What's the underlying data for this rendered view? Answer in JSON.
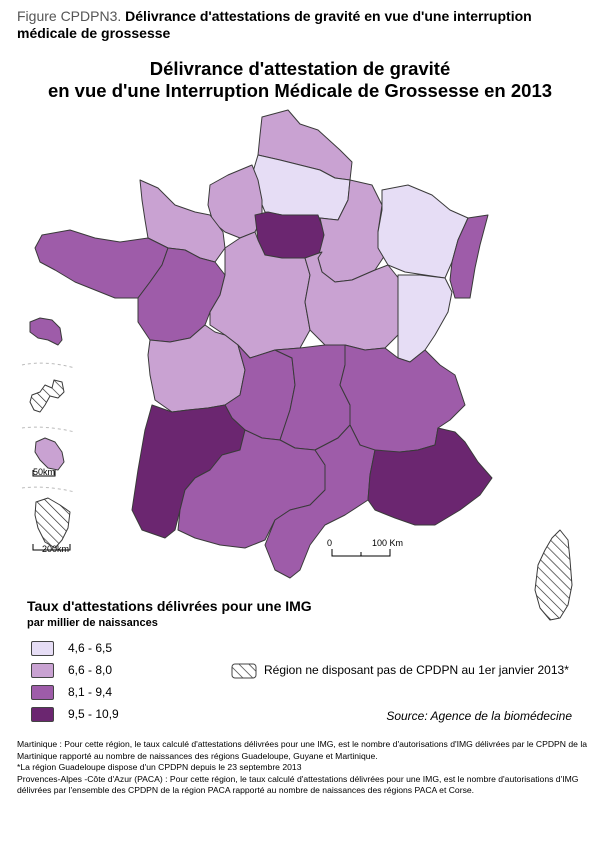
{
  "figure": {
    "number": "Figure CPDPN3.",
    "caption": " Délivrance d'attestations de gravité en vue d'une interruption médicale de grossesse"
  },
  "title": {
    "line1": "Délivrance d'attestation de gravité",
    "line2": "en vue d'une Interruption Médicale de Grossesse en 2013"
  },
  "legend": {
    "title": "Taux d'attestations délivrées pour une IMG",
    "subtitle": "par millier de naissances",
    "classes": [
      {
        "label": "4,6 - 6,5",
        "color": "#e6ddf5"
      },
      {
        "label": "6,6 - 8,0",
        "color": "#c9a2d2"
      },
      {
        "label": "8,1 - 9,4",
        "color": "#9e5ca9"
      },
      {
        "label": "9,5 - 10,9",
        "color": "#6b2670"
      }
    ],
    "nodata_label": "Région ne disposant pas de CPDPN au 1er janvier 2013*"
  },
  "scale": {
    "zero": "0",
    "main": "100 Km",
    "inset_small": "50km",
    "inset_large": "200km"
  },
  "regions": [
    {
      "name": "Nord-Pas-de-Calais",
      "class": 1
    },
    {
      "name": "Picardie",
      "class": 0
    },
    {
      "name": "Haute-Normandie",
      "class": 1
    },
    {
      "name": "Basse-Normandie",
      "class": 1
    },
    {
      "name": "Bretagne",
      "class": 2
    },
    {
      "name": "Ile-de-France",
      "class": 3
    },
    {
      "name": "Champagne-Ardenne",
      "class": 1
    },
    {
      "name": "Lorraine",
      "class": 0
    },
    {
      "name": "Alsace",
      "class": 2
    },
    {
      "name": "Pays de la Loire",
      "class": 2
    },
    {
      "name": "Centre",
      "class": 1
    },
    {
      "name": "Bourgogne",
      "class": 1
    },
    {
      "name": "Franche-Comté",
      "class": 0
    },
    {
      "name": "Poitou-Charentes",
      "class": 1
    },
    {
      "name": "Limousin",
      "class": 2
    },
    {
      "name": "Auvergne",
      "class": 2
    },
    {
      "name": "Rhône-Alpes",
      "class": 2
    },
    {
      "name": "Aquitaine",
      "class": 3
    },
    {
      "name": "Midi-Pyrénées",
      "class": 2
    },
    {
      "name": "Languedoc-Roussillon",
      "class": 2
    },
    {
      "name": "Provence-Alpes-Côte d'Azur",
      "class": 3
    },
    {
      "name": "Corse",
      "class": -1
    },
    {
      "name": "Martinique",
      "class": 2
    },
    {
      "name": "Guadeloupe",
      "class": -1
    },
    {
      "name": "La Réunion",
      "class": 1
    },
    {
      "name": "Guyane",
      "class": -1
    }
  ],
  "source": "Source: Agence de la biomédecine",
  "footnotes": [
    "Martinique : Pour cette région, le taux calculé d'attestations délivrées pour une IMG, est le nombre d'autorisations d'IMG délivrées par le CPDPN de la Martinique rapporté au nombre de naissances des régions Guadeloupe, Guyane et Martinique.",
    "*La région Guadeloupe dispose d'un CPDPN depuis le 23 septembre 2013",
    "Provences-Alpes -Côte d'Azur (PACA) : Pour cette région, le taux calculé d'attestations délivrées pour une IMG, est le nombre d'autorisations d'IMG délivrées par l'ensemble des CPDPN de la région PACA rapporté au nombre de naissances des régions PACA et Corse."
  ]
}
